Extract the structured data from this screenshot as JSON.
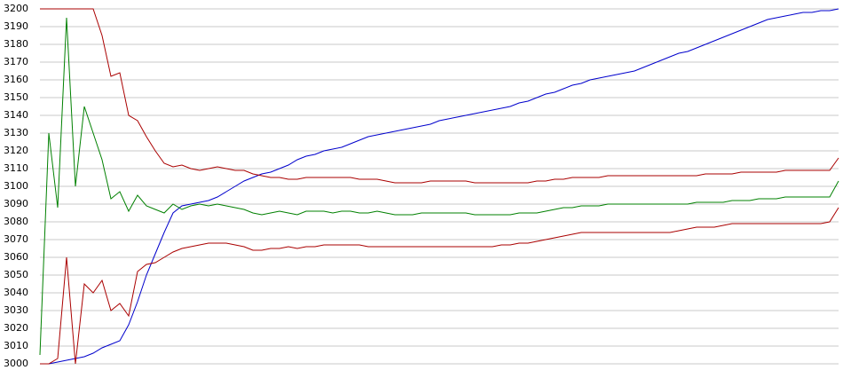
{
  "chart_data": {
    "type": "line",
    "ylim": [
      3000,
      3200
    ],
    "yticks": [
      3000,
      3010,
      3020,
      3030,
      3040,
      3050,
      3060,
      3070,
      3080,
      3090,
      3100,
      3110,
      3120,
      3130,
      3140,
      3150,
      3160,
      3170,
      3180,
      3190,
      3200
    ],
    "grid": true,
    "series": [
      {
        "color": "#0000cc",
        "values": [
          3000,
          3000,
          3001,
          3002,
          3003,
          3004,
          3006,
          3009,
          3011,
          3013,
          3022,
          3035,
          3050,
          3062,
          3074,
          3085,
          3089,
          3090,
          3091,
          3092,
          3094,
          3097,
          3100,
          3103,
          3105,
          3107,
          3108,
          3110,
          3112,
          3115,
          3117,
          3118,
          3120,
          3121,
          3122,
          3124,
          3126,
          3128,
          3129,
          3130,
          3131,
          3132,
          3133,
          3134,
          3135,
          3137,
          3138,
          3139,
          3140,
          3141,
          3142,
          3143,
          3144,
          3145,
          3147,
          3148,
          3150,
          3152,
          3153,
          3155,
          3157,
          3158,
          3160,
          3161,
          3162,
          3163,
          3164,
          3165,
          3167,
          3169,
          3171,
          3173,
          3175,
          3176,
          3178,
          3180,
          3182,
          3184,
          3186,
          3188,
          3190,
          3192,
          3194,
          3195,
          3196,
          3197,
          3198,
          3198,
          3199,
          3199,
          3200
        ]
      },
      {
        "color": "#008000",
        "values": [
          3005,
          3130,
          3088,
          3195,
          3100,
          3145,
          3130,
          3115,
          3093,
          3097,
          3086,
          3095,
          3089,
          3087,
          3085,
          3090,
          3087,
          3089,
          3090,
          3089,
          3090,
          3089,
          3088,
          3087,
          3085,
          3084,
          3085,
          3086,
          3085,
          3084,
          3086,
          3086,
          3086,
          3085,
          3086,
          3086,
          3085,
          3085,
          3086,
          3085,
          3084,
          3084,
          3084,
          3085,
          3085,
          3085,
          3085,
          3085,
          3085,
          3084,
          3084,
          3084,
          3084,
          3084,
          3085,
          3085,
          3085,
          3086,
          3087,
          3088,
          3088,
          3089,
          3089,
          3089,
          3090,
          3090,
          3090,
          3090,
          3090,
          3090,
          3090,
          3090,
          3090,
          3090,
          3091,
          3091,
          3091,
          3091,
          3092,
          3092,
          3092,
          3093,
          3093,
          3093,
          3094,
          3094,
          3094,
          3094,
          3094,
          3094,
          3103
        ]
      },
      {
        "color": "#aa0000",
        "values": [
          3200,
          3200,
          3200,
          3200,
          3200,
          3200,
          3200,
          3185,
          3162,
          3164,
          3140,
          3137,
          3128,
          3120,
          3113,
          3111,
          3112,
          3110,
          3109,
          3110,
          3111,
          3110,
          3109,
          3109,
          3107,
          3106,
          3105,
          3105,
          3104,
          3104,
          3105,
          3105,
          3105,
          3105,
          3105,
          3105,
          3104,
          3104,
          3104,
          3103,
          3102,
          3102,
          3102,
          3102,
          3103,
          3103,
          3103,
          3103,
          3103,
          3102,
          3102,
          3102,
          3102,
          3102,
          3102,
          3102,
          3103,
          3103,
          3104,
          3104,
          3105,
          3105,
          3105,
          3105,
          3106,
          3106,
          3106,
          3106,
          3106,
          3106,
          3106,
          3106,
          3106,
          3106,
          3106,
          3107,
          3107,
          3107,
          3107,
          3108,
          3108,
          3108,
          3108,
          3108,
          3109,
          3109,
          3109,
          3109,
          3109,
          3109,
          3116
        ]
      },
      {
        "color": "#aa0000",
        "values": [
          3000,
          3000,
          3003,
          3060,
          3000,
          3045,
          3040,
          3047,
          3030,
          3034,
          3027,
          3052,
          3056,
          3057,
          3060,
          3063,
          3065,
          3066,
          3067,
          3068,
          3068,
          3068,
          3067,
          3066,
          3064,
          3064,
          3065,
          3065,
          3066,
          3065,
          3066,
          3066,
          3067,
          3067,
          3067,
          3067,
          3067,
          3066,
          3066,
          3066,
          3066,
          3066,
          3066,
          3066,
          3066,
          3066,
          3066,
          3066,
          3066,
          3066,
          3066,
          3066,
          3067,
          3067,
          3068,
          3068,
          3069,
          3070,
          3071,
          3072,
          3073,
          3074,
          3074,
          3074,
          3074,
          3074,
          3074,
          3074,
          3074,
          3074,
          3074,
          3074,
          3075,
          3076,
          3077,
          3077,
          3077,
          3078,
          3079,
          3079,
          3079,
          3079,
          3079,
          3079,
          3079,
          3079,
          3079,
          3079,
          3079,
          3080,
          3088
        ]
      }
    ]
  }
}
